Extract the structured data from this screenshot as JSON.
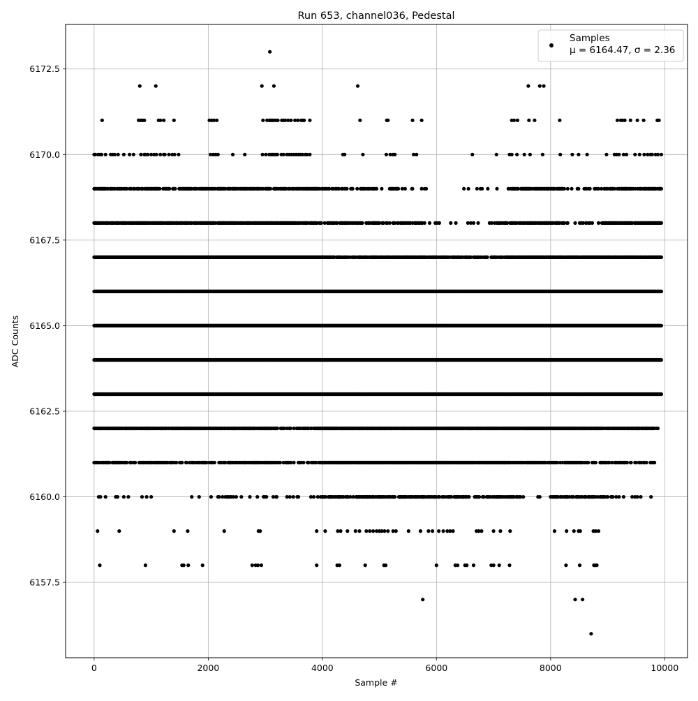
{
  "chart_data": {
    "type": "scatter",
    "title": "Run 653, channel036, Pedestal",
    "xlabel": "Sample #",
    "ylabel": "ADC Counts",
    "xlim": [
      -500,
      10400
    ],
    "ylim": [
      6155.3,
      6173.8
    ],
    "xticks": [
      0,
      2000,
      4000,
      6000,
      8000,
      10000
    ],
    "xtick_labels": [
      "0",
      "2000",
      "4000",
      "6000",
      "8000",
      "10000"
    ],
    "yticks": [
      6157.5,
      6160.0,
      6162.5,
      6165.0,
      6167.5,
      6170.0,
      6172.5
    ],
    "ytick_labels": [
      "6157.5",
      "6160.0",
      "6162.5",
      "6165.0",
      "6167.5",
      "6170.0",
      "6172.5"
    ],
    "grid": true,
    "legend_position": "top-right",
    "series": [
      {
        "name": "Samples",
        "stats_label": "μ = 6164.47, σ = 2.36",
        "color": "#000000",
        "marker": "circle",
        "x_range": [
          0,
          9940
        ],
        "levels": [
          {
            "y": 6156,
            "points": [
              8710
            ]
          },
          {
            "y": 6157,
            "points": [
              5760,
              8430,
              8560
            ]
          },
          {
            "y": 6158,
            "points": [
              100,
              900,
              1540,
              1570,
              1650,
              1900,
              2770,
              2830,
              2870,
              2930,
              3900,
              4260,
              4300,
              4750,
              5080,
              5110,
              6000,
              6330,
              6370,
              6500,
              6530,
              6650,
              6960,
              7000,
              7100,
              7280,
              8270,
              8510,
              8760,
              8790,
              8810
            ]
          },
          {
            "y": 6159,
            "points": [
              60,
              440,
              1400,
              1640,
              2280,
              2880,
              2910,
              3900,
              4050,
              4270,
              4320,
              4440,
              4580,
              4650,
              4770,
              4830,
              4890,
              4950,
              5000,
              5040,
              5090,
              5150,
              5240,
              5290,
              5510,
              5720,
              5860,
              5930,
              6040,
              6120,
              6190,
              6240,
              6290,
              6700,
              6740,
              6790,
              7000,
              7120,
              7290,
              8070,
              8280,
              8410,
              8490,
              8520,
              8750,
              8790,
              8840
            ]
          },
          {
            "y": 6160,
            "densities": [
              [
                0,
                2200,
                0.06
              ],
              [
                2200,
                4000,
                0.18
              ],
              [
                4000,
                7500,
                0.55
              ],
              [
                7500,
                8000,
                0.08
              ],
              [
                8000,
                9000,
                0.5
              ],
              [
                9000,
                9900,
                0.1
              ]
            ]
          },
          {
            "y": 6161,
            "densities": [
              [
                0,
                3100,
                0.5
              ],
              [
                3100,
                4000,
                0.35
              ],
              [
                4000,
                7300,
                0.95
              ],
              [
                7300,
                9000,
                0.6
              ],
              [
                9000,
                9860,
                0.35
              ]
            ]
          },
          {
            "y": 6162,
            "densities": [
              [
                0,
                3100,
                0.85
              ],
              [
                3100,
                3900,
                0.45
              ],
              [
                3900,
                8900,
                0.95
              ],
              [
                8900,
                9940,
                0.6
              ]
            ]
          },
          {
            "y": 6163,
            "densities": [
              [
                0,
                9940,
                1.0
              ]
            ]
          },
          {
            "y": 6164,
            "densities": [
              [
                0,
                9940,
                1.0
              ]
            ]
          },
          {
            "y": 6165,
            "densities": [
              [
                0,
                9940,
                1.0
              ]
            ]
          },
          {
            "y": 6166,
            "densities": [
              [
                0,
                9940,
                1.0
              ]
            ]
          },
          {
            "y": 6167,
            "densities": [
              [
                0,
                4200,
                1.0
              ],
              [
                4200,
                4900,
                0.7
              ],
              [
                4900,
                6000,
                0.9
              ],
              [
                6000,
                7200,
                0.55
              ],
              [
                7200,
                9940,
                0.95
              ]
            ]
          },
          {
            "y": 6168,
            "densities": [
              [
                0,
                3900,
                0.75
              ],
              [
                3900,
                5800,
                0.45
              ],
              [
                5800,
                7000,
                0.12
              ],
              [
                7000,
                8300,
                0.6
              ],
              [
                8300,
                9000,
                0.25
              ],
              [
                9000,
                9940,
                0.8
              ]
            ]
          },
          {
            "y": 6169,
            "densities": [
              [
                0,
                3900,
                0.6
              ],
              [
                3900,
                5500,
                0.35
              ],
              [
                5500,
                7300,
                0.1
              ],
              [
                7300,
                8200,
                0.65
              ],
              [
                8200,
                9000,
                0.2
              ],
              [
                9000,
                9940,
                0.6
              ]
            ]
          },
          {
            "y": 6170,
            "points": [
              0,
              20,
              70,
              100,
              130,
              200,
              290,
              330,
              360,
              420,
              520,
              620,
              690,
              820,
              880,
              900,
              940,
              1000,
              1050,
              1090,
              1160,
              1220,
              1240,
              1310,
              1370,
              1410,
              1480,
              2040,
              2090,
              2130,
              2170,
              2430,
              2640,
              2950,
              3010,
              3070,
              3100,
              3130,
              3150,
              3180,
              3210,
              3280,
              3320,
              3380,
              3420,
              3460,
              3500,
              3540,
              3580,
              3610,
              3650,
              3700,
              3730,
              3780,
              4360,
              4390,
              4710,
              5120,
              5190,
              5240,
              5270,
              5600,
              5650,
              6630,
              7050,
              7280,
              7320,
              7410,
              7540,
              7640,
              7860,
              8170,
              8380,
              8490,
              8640,
              8980,
              9120,
              9160,
              9200,
              9280,
              9330,
              9480,
              9560,
              9640,
              9700,
              9750,
              9780,
              9840,
              9880,
              9940
            ]
          },
          {
            "y": 6171,
            "points": [
              140,
              780,
              820,
              850,
              880,
              1130,
              1160,
              1220,
              1400,
              2020,
              2060,
              2100,
              2150,
              2960,
              3030,
              3070,
              3090,
              3110,
              3130,
              3160,
              3190,
              3220,
              3290,
              3320,
              3350,
              3400,
              3450,
              3520,
              3570,
              3630,
              3660,
              3680,
              3780,
              4660,
              5130,
              5150,
              5580,
              5740,
              7320,
              7360,
              7420,
              7620,
              7720,
              8160,
              9170,
              9230,
              9260,
              9300,
              9400,
              9520,
              9630,
              9870,
              9900
            ]
          },
          {
            "y": 6172,
            "points": [
              800,
              1080,
              2940,
              3150,
              4620,
              7610,
              7810,
              7880
            ]
          },
          {
            "y": 6173,
            "points": [
              3080
            ]
          }
        ]
      }
    ]
  }
}
